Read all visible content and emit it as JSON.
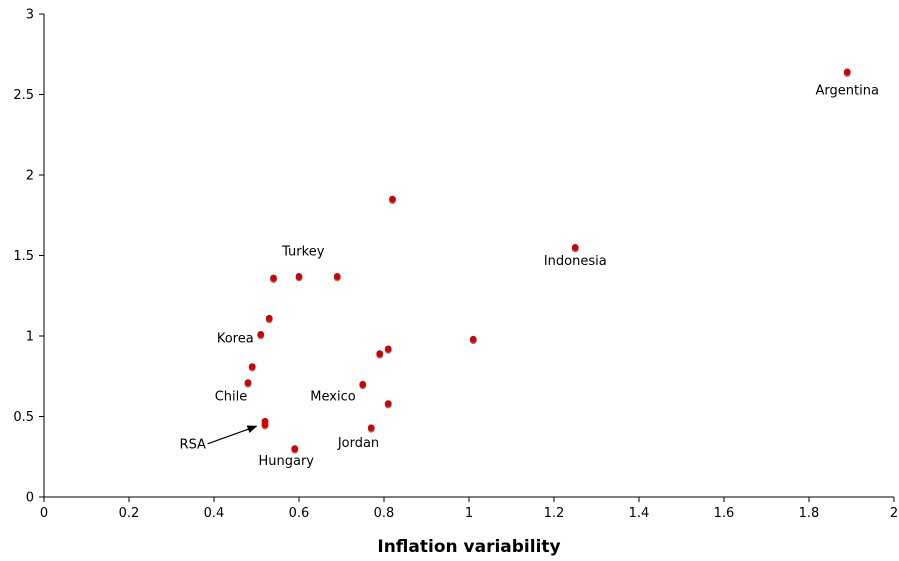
{
  "chart_data": {
    "type": "scatter",
    "xlabel": "Inflation variability",
    "ylabel": "",
    "xlim": [
      0,
      2
    ],
    "ylim": [
      0,
      3
    ],
    "x_ticks": [
      "0",
      "0.2",
      "0.4",
      "0.6",
      "0.8",
      "1",
      "1.2",
      "1.4",
      "1.6",
      "1.8",
      "2"
    ],
    "y_ticks": [
      "0",
      "0.5",
      "1",
      "1.5",
      "2",
      "2.5",
      "3"
    ],
    "grid": false,
    "legend": "none",
    "marker_color": "#d40000",
    "marker_shadow_color": "#7f7f7f",
    "points": [
      {
        "x": 1.89,
        "y": 2.64
      },
      {
        "x": 0.82,
        "y": 1.85
      },
      {
        "x": 1.25,
        "y": 1.55
      },
      {
        "x": 0.54,
        "y": 1.36
      },
      {
        "x": 0.6,
        "y": 1.37
      },
      {
        "x": 0.69,
        "y": 1.37
      },
      {
        "x": 0.53,
        "y": 1.11
      },
      {
        "x": 0.51,
        "y": 1.01
      },
      {
        "x": 1.01,
        "y": 0.98
      },
      {
        "x": 0.81,
        "y": 0.92
      },
      {
        "x": 0.79,
        "y": 0.89
      },
      {
        "x": 0.49,
        "y": 0.81
      },
      {
        "x": 0.48,
        "y": 0.71
      },
      {
        "x": 0.75,
        "y": 0.7
      },
      {
        "x": 0.81,
        "y": 0.58
      },
      {
        "x": 0.52,
        "y": 0.47
      },
      {
        "x": 0.52,
        "y": 0.45
      },
      {
        "x": 0.77,
        "y": 0.43
      },
      {
        "x": 0.59,
        "y": 0.3
      }
    ],
    "annotations": [
      {
        "text": "Argentina",
        "x": 1.89,
        "y": 2.5,
        "anchor": "middle"
      },
      {
        "text": "Indonesia",
        "x": 1.25,
        "y": 1.44,
        "anchor": "middle"
      },
      {
        "text": "Turkey",
        "x": 0.61,
        "y": 1.5,
        "anchor": "middle"
      },
      {
        "text": "Korea",
        "x": 0.45,
        "y": 0.96,
        "anchor": "middle"
      },
      {
        "text": "Chile",
        "x": 0.44,
        "y": 0.6,
        "anchor": "middle"
      },
      {
        "text": "Mexico",
        "x": 0.68,
        "y": 0.6,
        "anchor": "middle"
      },
      {
        "text": "RSA",
        "x": 0.35,
        "y": 0.3,
        "anchor": "middle"
      },
      {
        "text": "Hungary",
        "x": 0.57,
        "y": 0.2,
        "anchor": "middle"
      },
      {
        "text": "Jordan",
        "x": 0.74,
        "y": 0.31,
        "anchor": "middle"
      }
    ],
    "arrow": {
      "from_x": 0.385,
      "from_y": 0.33,
      "to_x": 0.5,
      "to_y": 0.44
    }
  }
}
